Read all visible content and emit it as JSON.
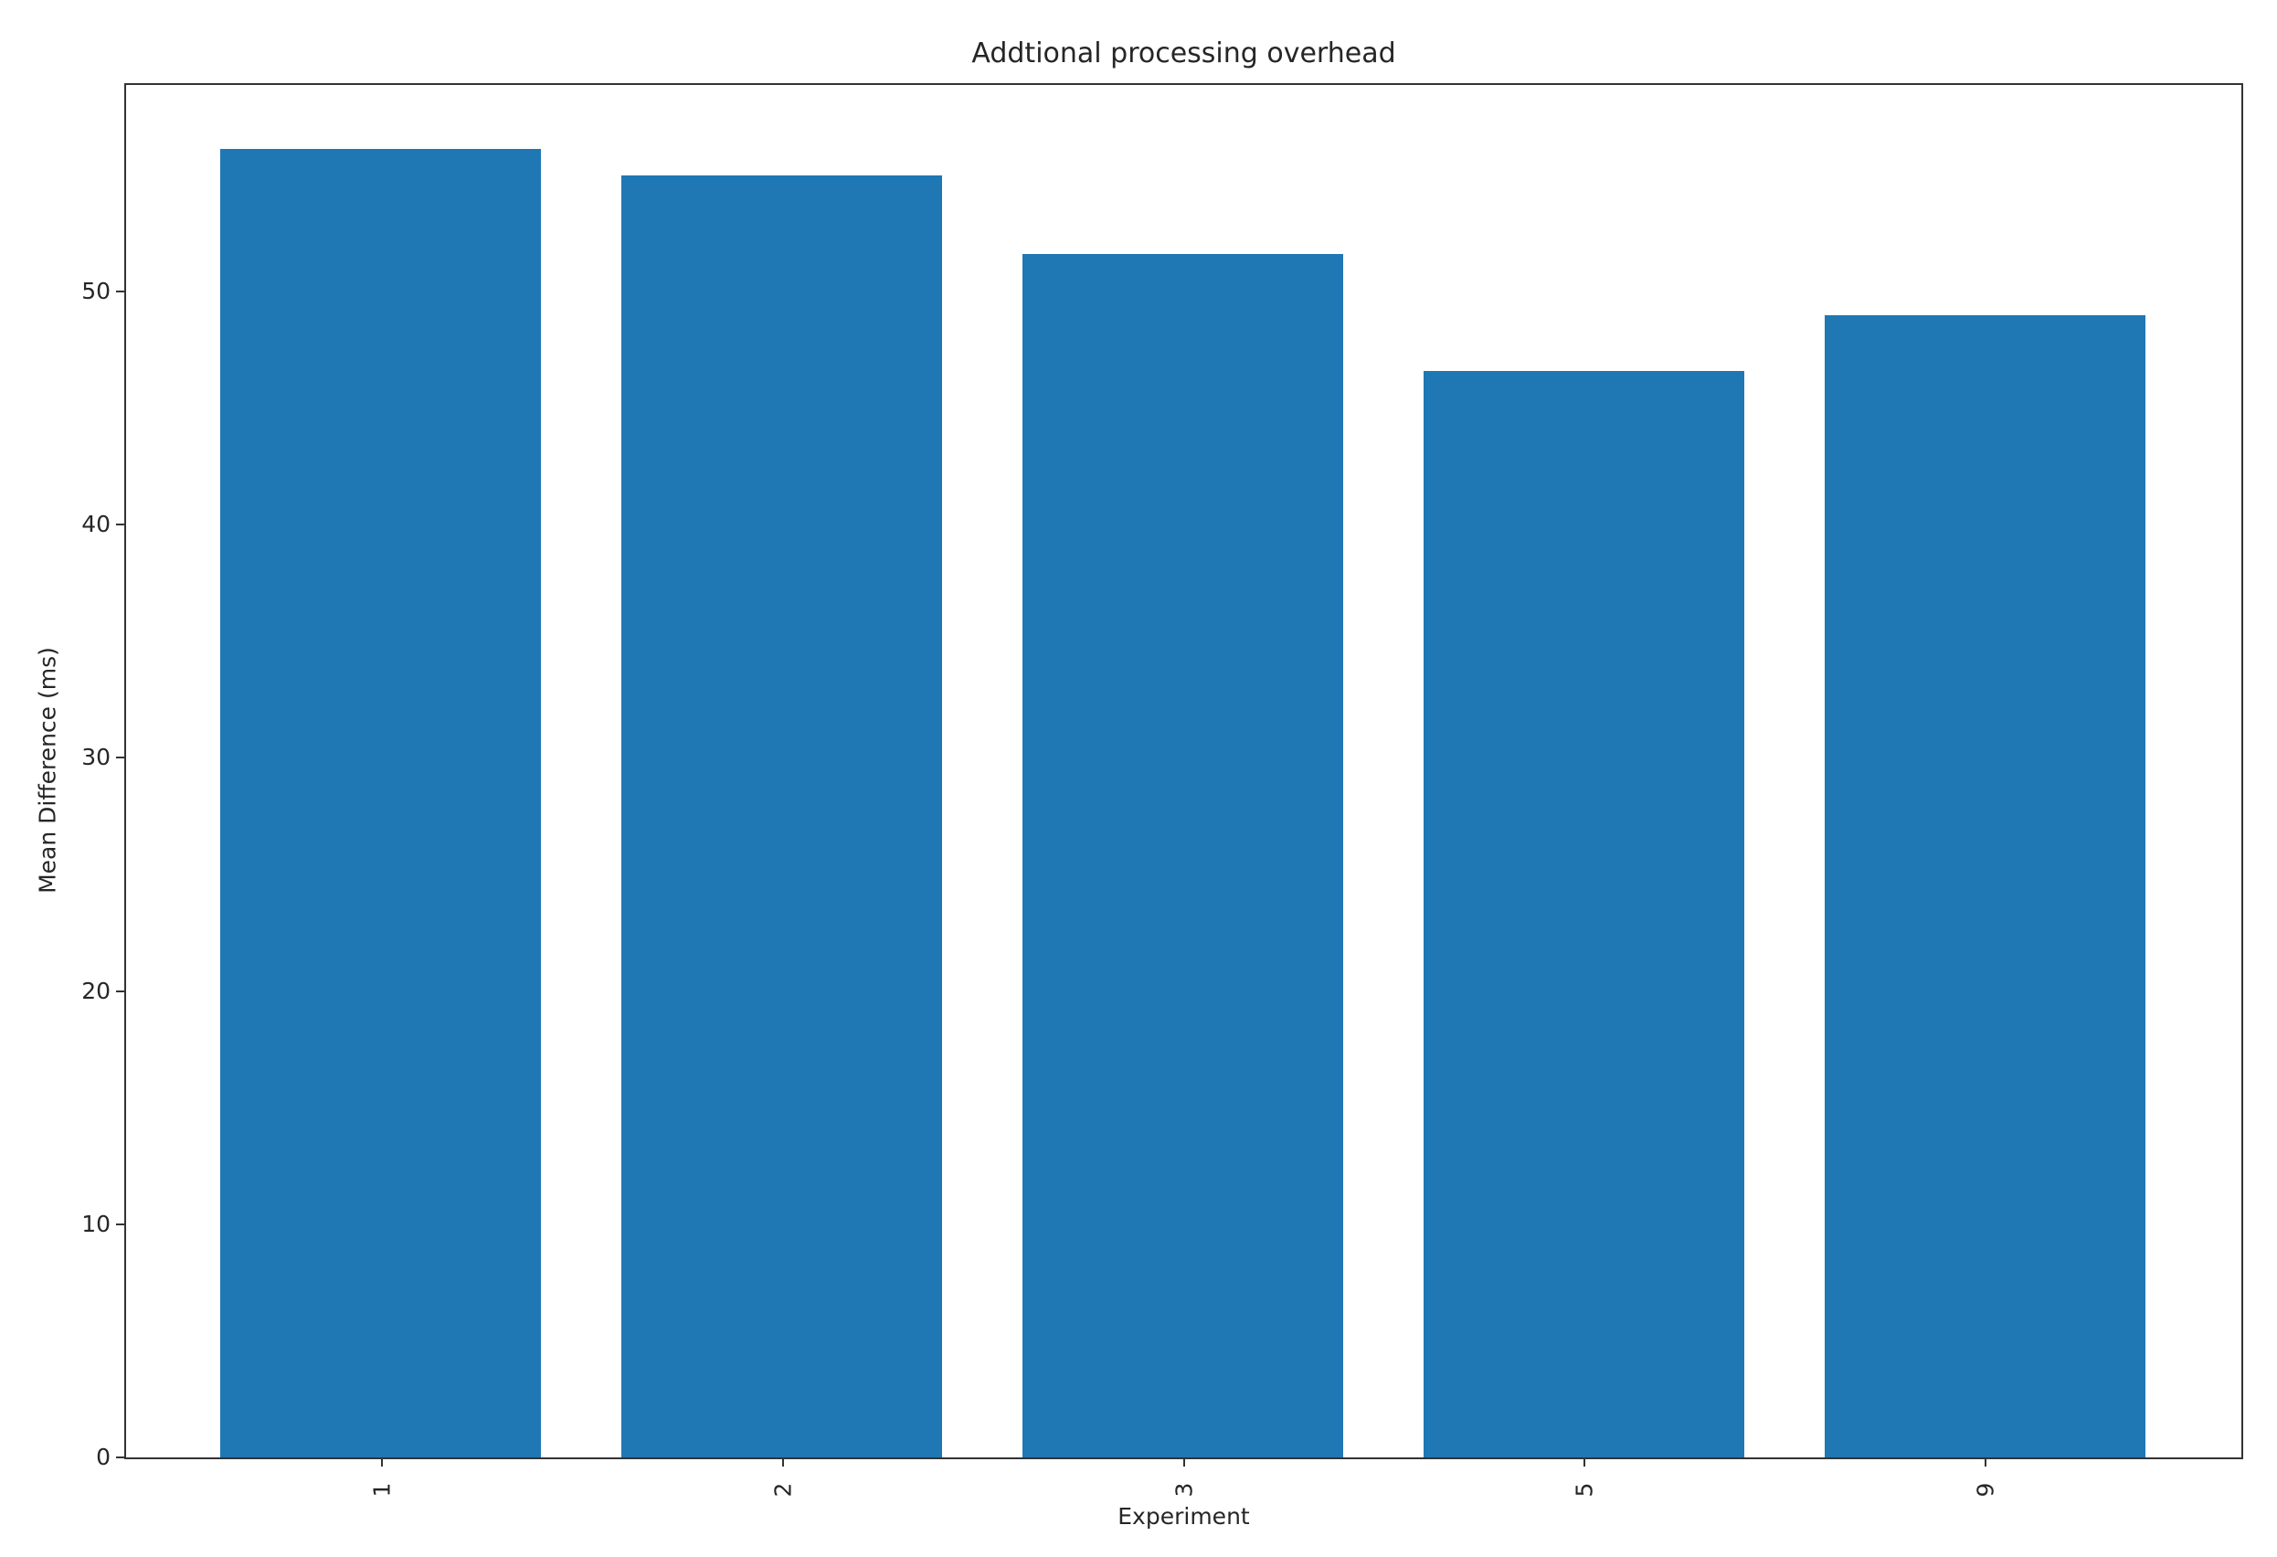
{
  "chart_data": {
    "type": "bar",
    "title": "Addtional processing overhead",
    "xlabel": "Experiment",
    "ylabel": "Mean Difference (ms)",
    "categories": [
      "1",
      "2",
      "3",
      "5",
      "9"
    ],
    "values": [
      56.1,
      55.0,
      51.6,
      46.6,
      49.0
    ],
    "yticks": [
      0,
      10,
      20,
      30,
      40,
      50
    ],
    "ylim": [
      0,
      58.9
    ],
    "bar_color": "#1f77b4",
    "background_color": "#ffffff",
    "xtick_rotation_deg": 90,
    "grid": false,
    "legend_position": "none"
  }
}
